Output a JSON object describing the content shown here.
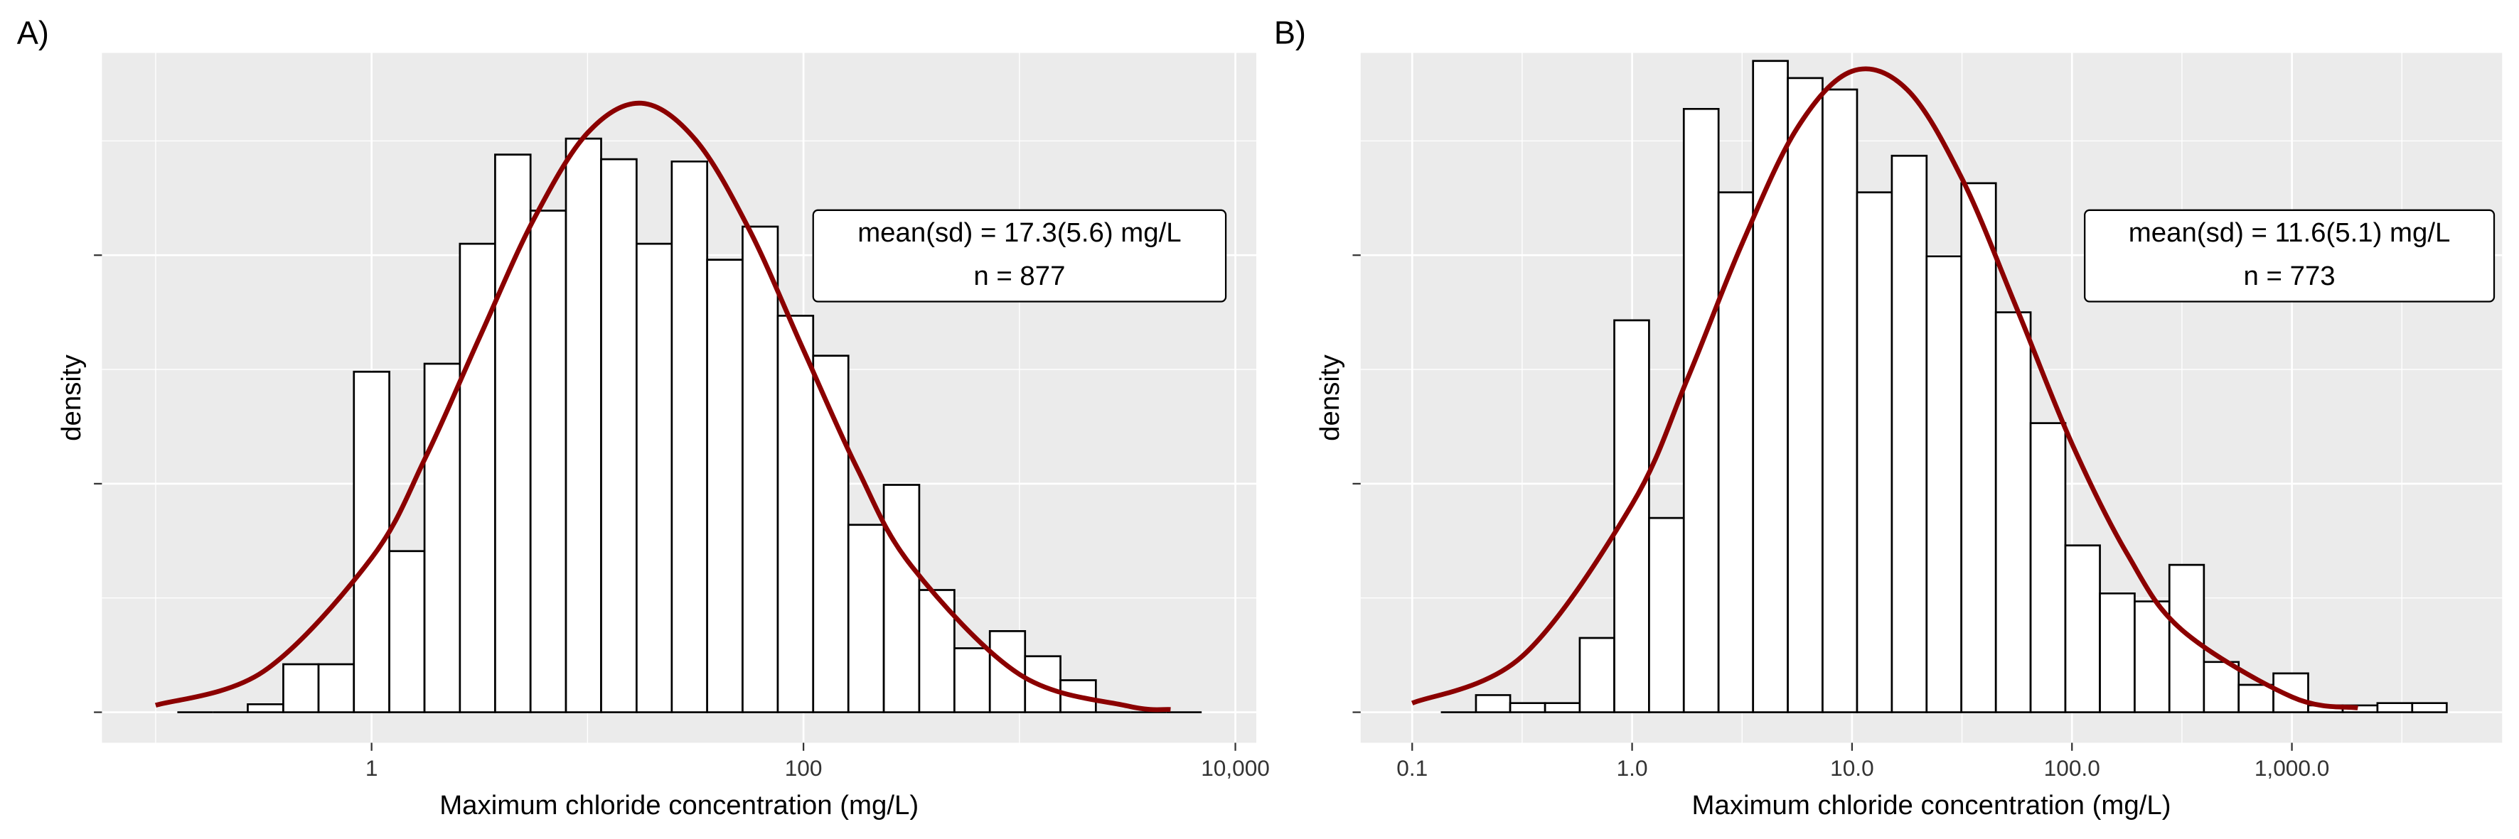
{
  "chart_data": [
    {
      "type": "histogram",
      "panel_label": "A)",
      "xlabel": "Maximum chloride concentration (mg/L)",
      "ylabel": "density",
      "xscale": "log",
      "grid": true,
      "xlim": [
        0.0564,
        12500
      ],
      "xticks": [
        1,
        100,
        {
          "value": 10000,
          "label": "10,000"
        }
      ],
      "x_minor_ticks": [
        0.1,
        10,
        1000
      ],
      "ylim": [
        -0.0267,
        0.577
      ],
      "yticks": [
        0,
        0.2,
        0.4
      ],
      "y_minor_ticks": [
        0.1,
        0.3,
        0.5
      ],
      "bins": [
        0.126,
        0.184,
        0.267,
        0.39,
        0.568,
        0.828,
        1.208,
        1.758,
        2.564,
        3.733,
        5.445,
        7.943,
        11.56,
        16.87,
        24.55,
        35.81,
        52.24,
        76.03,
        110.9,
        161.4,
        235.5,
        343.6,
        500.0,
        729.5,
        1062,
        1549,
        2259,
        3289,
        4797,
        6982
      ],
      "values": [
        0,
        0,
        0.007,
        0.042,
        0.042,
        0.298,
        0.141,
        0.305,
        0.41,
        0.488,
        0.439,
        0.502,
        0.484,
        0.41,
        0.482,
        0.396,
        0.425,
        0.347,
        0.312,
        0.164,
        0.199,
        0.107,
        0.056,
        0.071,
        0.049,
        0.028,
        0,
        0,
        0
      ],
      "bar_fill": "#ffffff",
      "bar_edge": "#000000",
      "curve": {
        "color": "#8b0000",
        "x": [
          0.1,
          0.3162,
          1,
          1.778,
          3.162,
          5.623,
          10,
          17.78,
          31.62,
          56.23,
          100,
          177.8,
          316.2,
          1000,
          3162,
          5012
        ],
        "values": [
          0.0061,
          0.0358,
          0.135,
          0.223,
          0.328,
          0.431,
          0.507,
          0.533,
          0.501,
          0.422,
          0.317,
          0.213,
          0.128,
          0.0332,
          0.0055,
          0.0024
        ]
      },
      "annotation": [
        "mean(sd) = 17.3(5.6) mg/L",
        "n = 877"
      ]
    },
    {
      "type": "histogram",
      "panel_label": "B)",
      "xlabel": "Maximum chloride concentration (mg/L)",
      "ylabel": "density",
      "xscale": "log",
      "grid": true,
      "xlim": [
        0.0583,
        9036
      ],
      "xticks": [
        0.1,
        {
          "value": 1,
          "label": "1.0"
        },
        {
          "value": 10,
          "label": "10.0"
        },
        {
          "value": 100,
          "label": "100.0"
        },
        {
          "value": 1000,
          "label": "1,000.0"
        }
      ],
      "x_minor_ticks": [
        0.3162,
        3.162,
        31.62,
        316.2,
        3162
      ],
      "ylim": [
        -0.0267,
        0.577
      ],
      "yticks": [
        0,
        0.2,
        0.4
      ],
      "y_minor_ticks": [
        0.1,
        0.3,
        0.5
      ],
      "bins": [
        0.135,
        0.195,
        0.279,
        0.402,
        0.578,
        0.83,
        1.194,
        1.718,
        2.472,
        3.548,
        5.105,
        7.345,
        10.54,
        15.17,
        21.83,
        31.41,
        45.08,
        64.86,
        93.33,
        134.0,
        192.8,
        277.3,
        398.1,
        572.8,
        824.1,
        1186,
        1702,
        2449,
        3524,
        5058
      ],
      "values": [
        0,
        0.015,
        0.008,
        0.008,
        0.065,
        0.343,
        0.17,
        0.528,
        0.455,
        0.57,
        0.555,
        0.545,
        0.455,
        0.487,
        0.399,
        0.463,
        0.35,
        0.253,
        0.146,
        0.104,
        0.097,
        0.129,
        0.044,
        0.024,
        0.034,
        0.006,
        0.006,
        0.008,
        0.008
      ],
      "bar_fill": "#ffffff",
      "bar_edge": "#000000",
      "curve": {
        "color": "#8b0000",
        "x": [
          0.1,
          0.3162,
          1,
          1.778,
          3.162,
          5.623,
          10,
          17.78,
          31.62,
          56.23,
          100,
          177.8,
          316.2,
          1000,
          1995
        ],
        "values": [
          0.008,
          0.0489,
          0.182,
          0.291,
          0.41,
          0.511,
          0.561,
          0.545,
          0.467,
          0.353,
          0.235,
          0.139,
          0.072,
          0.0134,
          0.0038
        ]
      },
      "annotation": [
        "mean(sd) = 11.6(5.1) mg/L",
        "n = 773"
      ]
    }
  ]
}
